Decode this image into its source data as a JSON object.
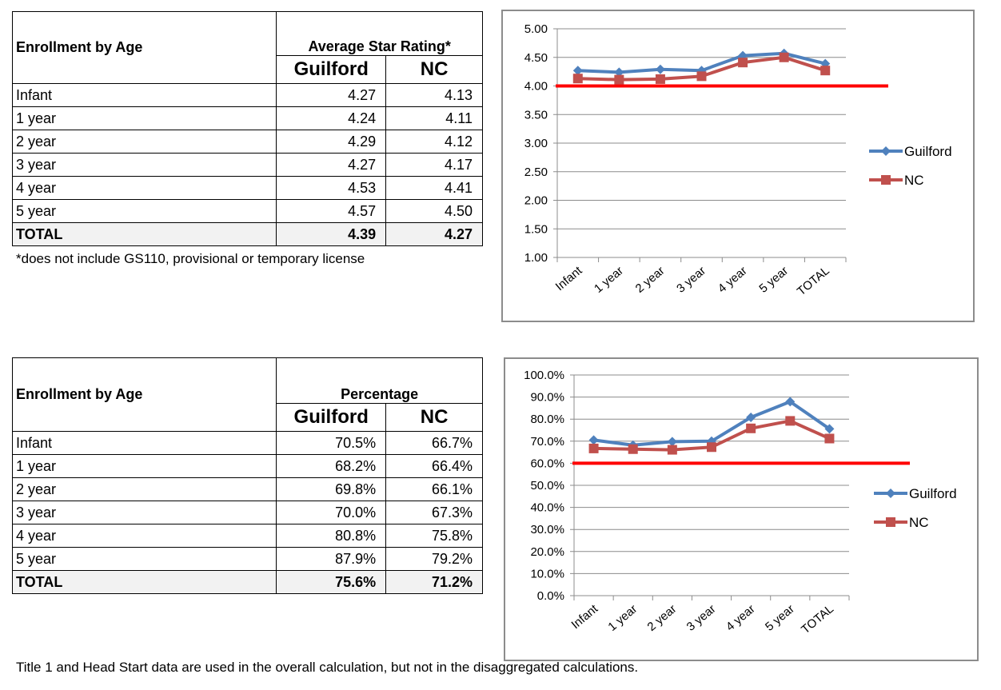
{
  "table1": {
    "row_header": "Enrollment by Age",
    "group_header": "Average Star Rating*",
    "col1": "Guilford",
    "col2": "NC",
    "rows": [
      {
        "label": "Infant",
        "a": "4.27",
        "b": "4.13"
      },
      {
        "label": "1 year",
        "a": "4.24",
        "b": "4.11"
      },
      {
        "label": "2 year",
        "a": "4.29",
        "b": "4.12"
      },
      {
        "label": "3 year",
        "a": "4.27",
        "b": "4.17"
      },
      {
        "label": "4 year",
        "a": "4.53",
        "b": "4.41"
      },
      {
        "label": "5 year",
        "a": "4.57",
        "b": "4.50"
      },
      {
        "label": "TOTAL",
        "a": "4.39",
        "b": "4.27"
      }
    ],
    "footnote": "*does not include GS110, provisional or temporary license"
  },
  "table2": {
    "row_header": "Enrollment by Age",
    "group_header": "Percentage",
    "col1": "Guilford",
    "col2": "NC",
    "rows": [
      {
        "label": "Infant",
        "a": "70.5%",
        "b": "66.7%"
      },
      {
        "label": "1 year",
        "a": "68.2%",
        "b": "66.4%"
      },
      {
        "label": "2 year",
        "a": "69.8%",
        "b": "66.1%"
      },
      {
        "label": "3 year",
        "a": "70.0%",
        "b": "67.3%"
      },
      {
        "label": "4 year",
        "a": "80.8%",
        "b": "75.8%"
      },
      {
        "label": "5 year",
        "a": "87.9%",
        "b": "79.2%"
      },
      {
        "label": "TOTAL",
        "a": "75.6%",
        "b": "71.2%"
      }
    ]
  },
  "bottom_note": "Title 1 and Head Start data are used in the overall calculation, but not in the disaggregated calculations.",
  "chart_data": [
    {
      "type": "line",
      "categories": [
        "Infant",
        "1 year",
        "2 year",
        "3 year",
        "4 year",
        "5 year",
        "TOTAL"
      ],
      "series": [
        {
          "name": "Guilford",
          "values": [
            4.27,
            4.24,
            4.29,
            4.27,
            4.53,
            4.57,
            4.39
          ],
          "color": "#4f81bd",
          "marker": "diamond"
        },
        {
          "name": "NC",
          "values": [
            4.13,
            4.11,
            4.12,
            4.17,
            4.41,
            4.5,
            4.27
          ],
          "color": "#c0504d",
          "marker": "square"
        }
      ],
      "ylim": [
        1.0,
        5.0
      ],
      "yticks": [
        1.0,
        1.5,
        2.0,
        2.5,
        3.0,
        3.5,
        4.0,
        4.5,
        5.0
      ],
      "ytick_labels": [
        "1.00",
        "1.50",
        "2.00",
        "2.50",
        "3.00",
        "3.50",
        "4.00",
        "4.50",
        "5.00"
      ],
      "reference_line": {
        "value": 4.0,
        "color": "#ff0000"
      },
      "grid": true,
      "legend": "right"
    },
    {
      "type": "line",
      "categories": [
        "Infant",
        "1 year",
        "2 year",
        "3 year",
        "4 year",
        "5 year",
        "TOTAL"
      ],
      "series": [
        {
          "name": "Guilford",
          "values": [
            70.5,
            68.2,
            69.8,
            70.0,
            80.8,
            87.9,
            75.6
          ],
          "color": "#4f81bd",
          "marker": "diamond"
        },
        {
          "name": "NC",
          "values": [
            66.7,
            66.4,
            66.1,
            67.3,
            75.8,
            79.2,
            71.2
          ],
          "color": "#c0504d",
          "marker": "square"
        }
      ],
      "ylim": [
        0,
        100
      ],
      "yticks": [
        0,
        10,
        20,
        30,
        40,
        50,
        60,
        70,
        80,
        90,
        100
      ],
      "ytick_labels": [
        "0.0%",
        "10.0%",
        "20.0%",
        "30.0%",
        "40.0%",
        "50.0%",
        "60.0%",
        "70.0%",
        "80.0%",
        "90.0%",
        "100.0%"
      ],
      "reference_line": {
        "value": 60,
        "color": "#ff0000"
      },
      "grid": true,
      "legend": "right"
    }
  ]
}
